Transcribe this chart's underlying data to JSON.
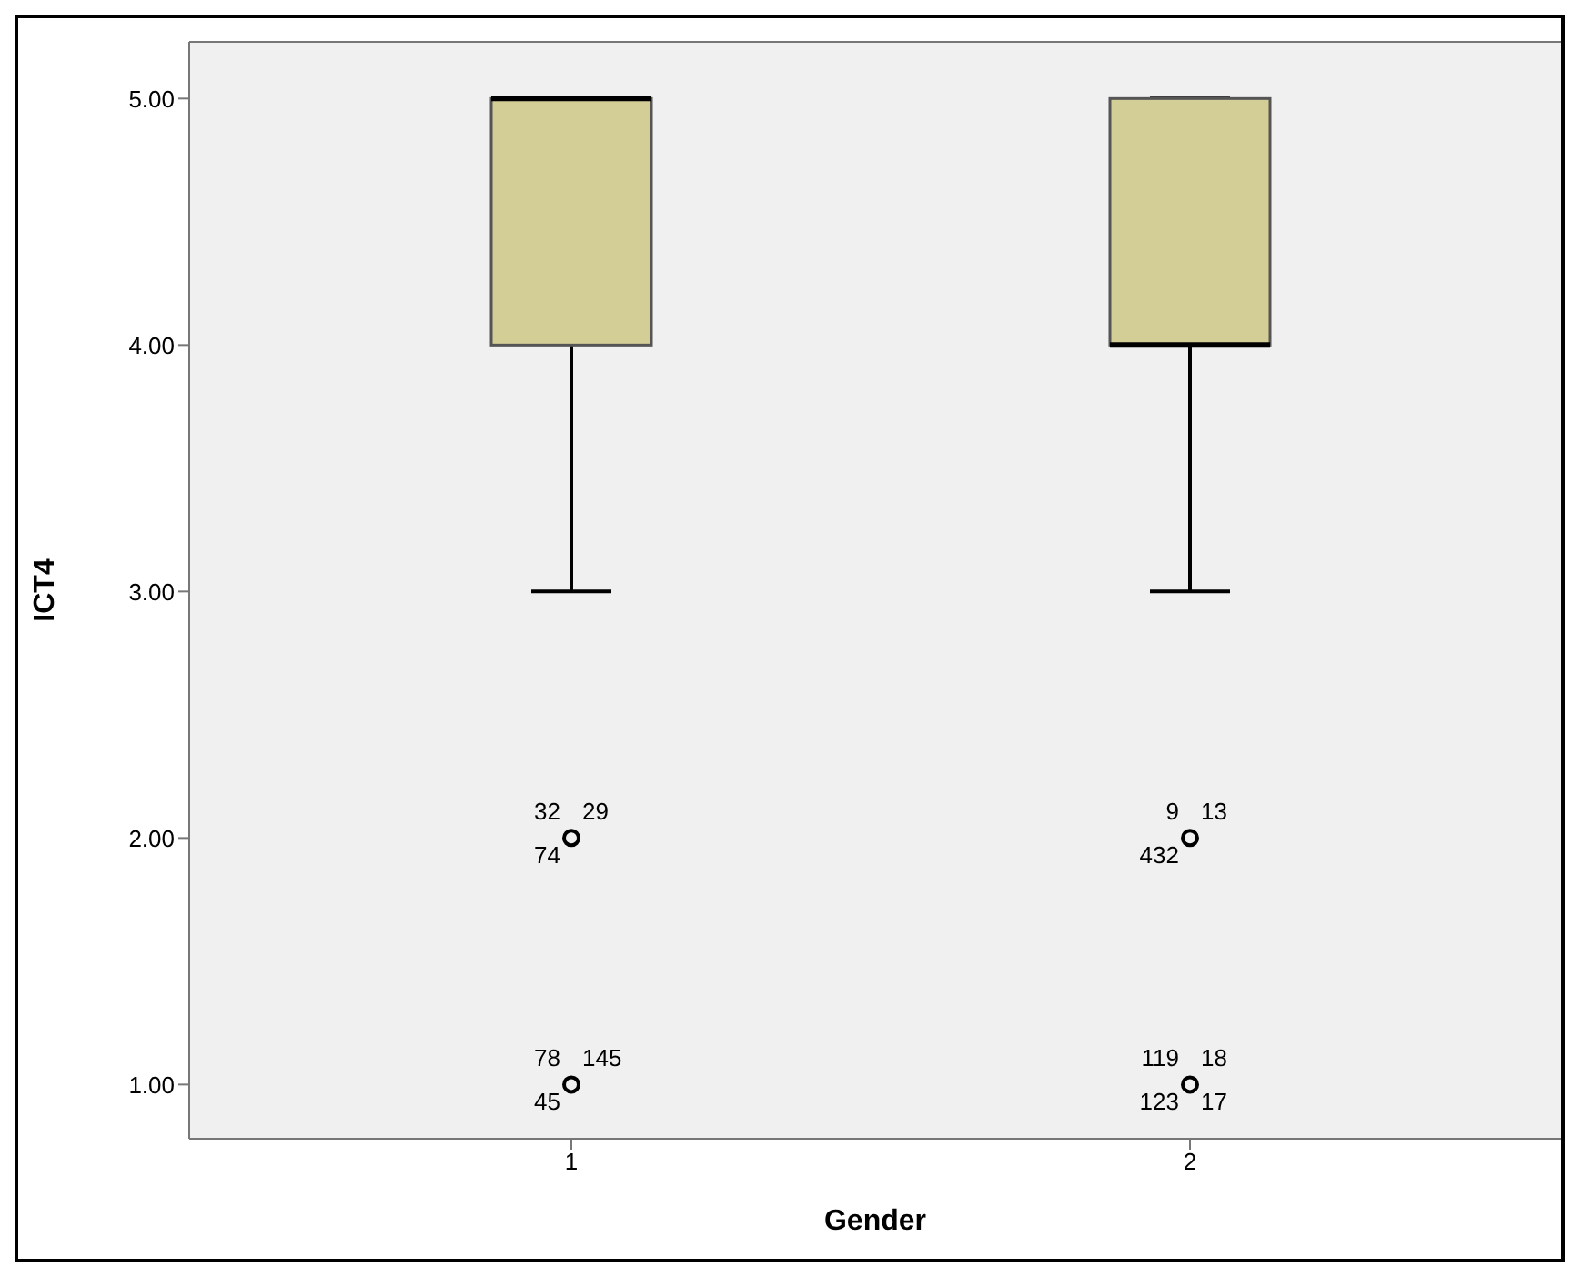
{
  "chart_data": {
    "type": "box",
    "xlabel": "Gender",
    "ylabel": "ICT4",
    "categories": [
      "1",
      "2"
    ],
    "color": "#d3cd96",
    "boxes": [
      {
        "low": 3,
        "q1": 4,
        "median": 5,
        "q3": 5,
        "high": 5
      },
      {
        "low": 3,
        "q1": 4,
        "median": 4,
        "q3": 5,
        "high": 5
      }
    ],
    "series": [
      {
        "type": "scatter",
        "color": "#000000",
        "x": [
          "1",
          "1",
          "2",
          "2"
        ],
        "values": [
          2,
          1,
          2,
          1
        ]
      }
    ],
    "ylim": [
      0.78,
      5.23
    ],
    "yticks": [
      {
        "value": 1,
        "label": "1.00"
      },
      {
        "value": 2,
        "label": "2.00"
      },
      {
        "value": 3,
        "label": "3.00"
      },
      {
        "value": 4,
        "label": "4.00"
      },
      {
        "value": 5,
        "label": "5.00"
      }
    ],
    "marker": "circle",
    "annotations": [
      {
        "text": "32",
        "x": "1",
        "y": 2
      },
      {
        "text": "29",
        "x": "1",
        "y": 2
      },
      {
        "text": "74",
        "x": "1",
        "y": 2
      },
      {
        "text": "78",
        "x": "1",
        "y": 1
      },
      {
        "text": "145",
        "x": "1",
        "y": 1
      },
      {
        "text": "45",
        "x": "1",
        "y": 1
      },
      {
        "text": "9",
        "x": "2",
        "y": 2
      },
      {
        "text": "13",
        "x": "2",
        "y": 2
      },
      {
        "text": "432",
        "x": "2",
        "y": 2
      },
      {
        "text": "119",
        "x": "2",
        "y": 1
      },
      {
        "text": "18",
        "x": "2",
        "y": 1
      },
      {
        "text": "123",
        "x": "2",
        "y": 1
      },
      {
        "text": "17",
        "x": "2",
        "y": 1
      }
    ]
  }
}
